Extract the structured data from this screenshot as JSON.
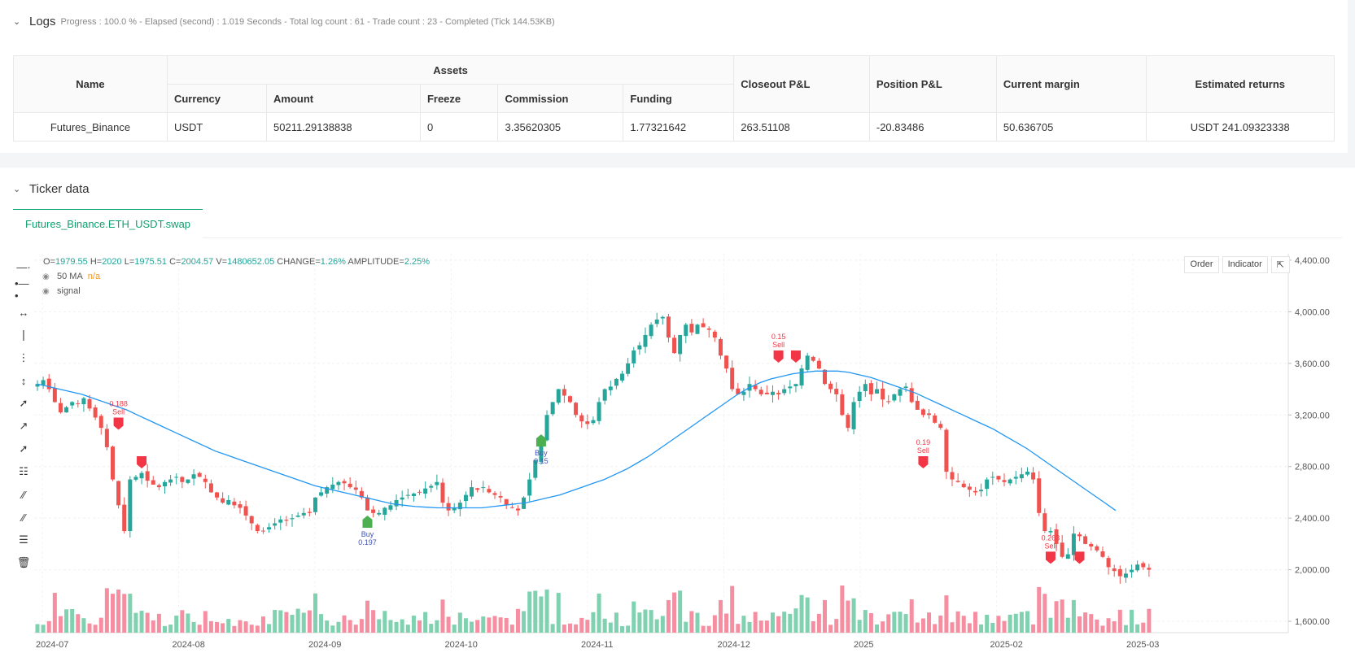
{
  "logs": {
    "title": "Logs",
    "summary": "Progress : 100.0 % - Elapsed (second) : 1.019 Seconds - Total log count : 61 - Trade count : 23 - Completed (Tick 144.53KB)",
    "table": {
      "headers": {
        "name": "Name",
        "assets": "Assets",
        "closeout": "Closeout P&L",
        "position": "Position P&L",
        "margin": "Current margin",
        "estimated": "Estimated returns"
      },
      "subheaders": [
        "Currency",
        "Amount",
        "Freeze",
        "Commission",
        "Funding"
      ],
      "row": {
        "name": "Futures_Binance",
        "currency": "USDT",
        "amount": "50211.29138838",
        "freeze": "0",
        "commission": "3.35620305",
        "funding": "1.77321642",
        "closeout": "263.51108",
        "position": "-20.83486",
        "margin": "50.636705",
        "estimated": "USDT 241.09323338"
      }
    }
  },
  "ticker": {
    "title": "Ticker data",
    "tab": "Futures_Binance.ETH_USDT.swap",
    "ohlc": {
      "o_label": "O=",
      "o": "1979.55",
      "h_label": "H=",
      "h": "2020",
      "l_label": "L=",
      "l": "1975.51",
      "c_label": "C=",
      "c": "2004.57",
      "v_label": "V=",
      "v": "1480652.05",
      "change_label": "CHANGE=",
      "change": "1.26%",
      "amp_label": "AMPLITUDE=",
      "amp": "2.25%"
    },
    "legend": [
      {
        "label": "50 MA",
        "value": "n/a"
      },
      {
        "label": "signal",
        "value": ""
      }
    ],
    "buttons": {
      "order": "Order",
      "indicator": "Indicator"
    },
    "tools": [
      "crosshair-icon",
      "horizontal-line-icon",
      "horizontal-ray-icon",
      "vertical-line-icon",
      "vertical-segment-icon",
      "vertical-arrow-icon",
      "trend-line-icon",
      "ray-icon",
      "extended-line-icon",
      "price-range-icon",
      "parallel-channel-icon",
      "fib-icon",
      "text-lines-icon",
      "trash-icon"
    ]
  },
  "chart_data": {
    "type": "candlestick",
    "symbol": "ETH_USDT",
    "y_ticks": [
      "4,400.00",
      "4,000.00",
      "3,600.00",
      "3,200.00",
      "2,800.00",
      "2,400.00",
      "2,000.00",
      "1,600.00"
    ],
    "y_values": [
      4400,
      4000,
      3600,
      3200,
      2800,
      2400,
      2000,
      1600
    ],
    "x_ticks": [
      "2024-07",
      "2024-08",
      "2024-09",
      "2024-10",
      "2024-11",
      "2024-12",
      "2025",
      "2025-02",
      "2025-03"
    ],
    "ylim": [
      1550,
      4450
    ],
    "colors": {
      "up": "#26a69a",
      "down": "#ef5350",
      "ma": "#2196f3",
      "buy": "#4caf50",
      "sell": "#f23645"
    },
    "closes": [
      3440,
      3470,
      3400,
      3300,
      3220,
      3260,
      3300,
      3290,
      3330,
      3250,
      3180,
      3100,
      2950,
      2700,
      2500,
      2300,
      2700,
      2720,
      2750,
      2690,
      2660,
      2640,
      2680,
      2700,
      2720,
      2680,
      2700,
      2740,
      2720,
      2680,
      2600,
      2560,
      2520,
      2540,
      2500,
      2480,
      2420,
      2360,
      2300,
      2300,
      2330,
      2360,
      2390,
      2380,
      2400,
      2420,
      2440,
      2440,
      2560,
      2600,
      2640,
      2660,
      2680,
      2670,
      2640,
      2620,
      2560,
      2460,
      2440,
      2440,
      2480,
      2500,
      2540,
      2560,
      2580,
      2590,
      2600,
      2630,
      2650,
      2680,
      2520,
      2460,
      2480,
      2520,
      2580,
      2640,
      2620,
      2640,
      2600,
      2580,
      2560,
      2500,
      2480,
      2460,
      2560,
      2700,
      2850,
      2990,
      3200,
      3300,
      3400,
      3350,
      3300,
      3200,
      3150,
      3130,
      3160,
      3300,
      3400,
      3420,
      3480,
      3520,
      3600,
      3700,
      3740,
      3820,
      3900,
      3940,
      3960,
      3800,
      3680,
      3820,
      3900,
      3840,
      3900,
      3880,
      3860,
      3800,
      3660,
      3560,
      3400,
      3360,
      3380,
      3440,
      3400,
      3360,
      3360,
      3380,
      3360,
      3400,
      3420,
      3440,
      3560,
      3660,
      3620,
      3560,
      3440,
      3400,
      3360,
      3200,
      3100,
      3300,
      3380,
      3440,
      3360,
      3400,
      3320,
      3300,
      3360,
      3400,
      3420,
      3300,
      3240,
      3200,
      3200,
      3140,
      3100,
      2760,
      2700,
      2680,
      2640,
      2620,
      2600,
      2620,
      2700,
      2720,
      2700,
      2680,
      2700,
      2720,
      2740,
      2760,
      2700,
      2440,
      2300,
      2300,
      2200,
      2100,
      2120,
      2280,
      2260,
      2200,
      2180,
      2150,
      2100,
      2020,
      1990,
      1950,
      1970,
      2000,
      2040,
      2020,
      2000
    ],
    "ma50": [
      3440,
      3420,
      3400,
      3380,
      3360,
      3330,
      3300,
      3270,
      3240,
      3200,
      3160,
      3120,
      3080,
      3040,
      3000,
      2960,
      2920,
      2890,
      2860,
      2830,
      2800,
      2770,
      2740,
      2710,
      2680,
      2650,
      2630,
      2610,
      2590,
      2570,
      2550,
      2530,
      2510,
      2500,
      2490,
      2485,
      2480,
      2480,
      2480,
      2480,
      2480,
      2490,
      2500,
      2510,
      2520,
      2540,
      2560,
      2580,
      2610,
      2640,
      2670,
      2700,
      2740,
      2780,
      2830,
      2880,
      2940,
      3000,
      3060,
      3120,
      3180,
      3240,
      3300,
      3360,
      3410,
      3450,
      3480,
      3500,
      3520,
      3530,
      3540,
      3540,
      3540,
      3530,
      3510,
      3490,
      3460,
      3430,
      3400,
      3370,
      3330,
      3290,
      3250,
      3210,
      3170,
      3130,
      3090,
      3040,
      2990,
      2940,
      2880,
      2820,
      2760,
      2700,
      2640,
      2580,
      2520,
      2460
    ],
    "signals": [
      {
        "type": "sell",
        "index": 14,
        "price": 3180,
        "label": "0.188"
      },
      {
        "type": "sell",
        "index": 18,
        "price": 2880,
        "label": ""
      },
      {
        "type": "buy",
        "index": 57,
        "price": 2420,
        "label": "0.197"
      },
      {
        "type": "buy",
        "index": 87,
        "price": 3050,
        "label": "0.15"
      },
      {
        "type": "sell",
        "index": 128,
        "price": 3700,
        "label": "0.15"
      },
      {
        "type": "sell",
        "index": 131,
        "price": 3700,
        "label": ""
      },
      {
        "type": "sell",
        "index": 153,
        "price": 2880,
        "label": "0.19"
      },
      {
        "type": "sell",
        "index": 175,
        "price": 2140,
        "label": "0.263"
      },
      {
        "type": "sell",
        "index": 180,
        "price": 2140,
        "label": ""
      }
    ],
    "signal_text": {
      "buy": "Buy",
      "sell": "Sell"
    }
  }
}
